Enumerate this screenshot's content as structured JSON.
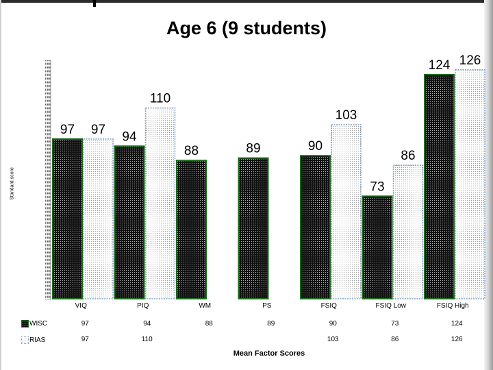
{
  "chart_data": {
    "type": "bar",
    "title": "Age 6 (9 students)",
    "xlabel": "Mean Factor Scores",
    "ylabel": "Standard score",
    "categories": [
      "VIQ",
      "PIQ",
      "WM",
      "PS",
      "FSIQ",
      "FSIQ Low",
      "FSIQ High"
    ],
    "series": [
      {
        "name": "WISC",
        "values": [
          97,
          94,
          88,
          89,
          90,
          73,
          124
        ],
        "labels": [
          "97",
          "94",
          "88",
          "89",
          "90",
          "73",
          "124"
        ],
        "table": [
          "97",
          "94",
          "88",
          "89",
          "90",
          "73",
          "124"
        ],
        "color": "#111111",
        "border": "#1c6b1c"
      },
      {
        "name": "RIAS",
        "values": [
          97,
          110,
          null,
          null,
          103,
          86,
          126
        ],
        "labels": [
          "97",
          "110",
          "",
          "",
          "103",
          "86",
          "126"
        ],
        "table": [
          "97",
          "110",
          "",
          "",
          "103",
          "86",
          "126"
        ],
        "color": "#ffffff",
        "border": "#7a9cc4"
      }
    ],
    "ylim": [
      30,
      130
    ],
    "grid": false,
    "legend_placement": "bottom-left data table"
  }
}
